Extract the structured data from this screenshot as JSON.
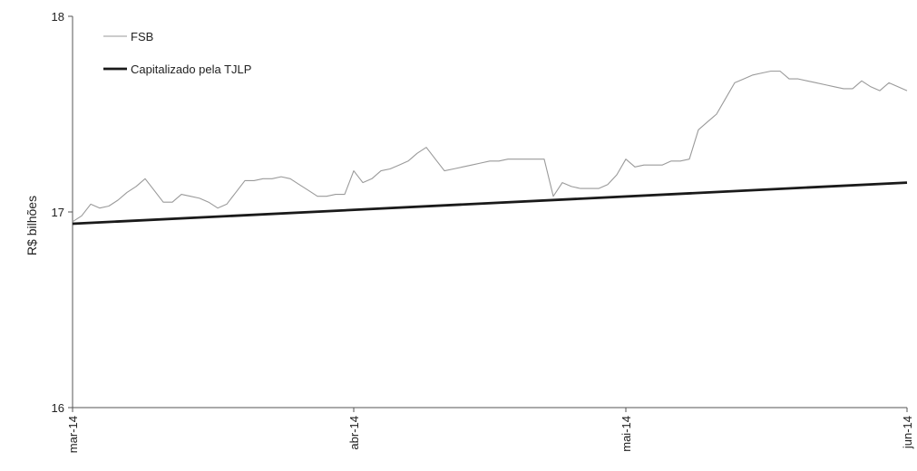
{
  "chart_data": {
    "type": "line",
    "title": "",
    "xlabel": "",
    "ylabel": "R$ bilhões",
    "ylim": [
      16,
      18
    ],
    "xlim": [
      "2014-03-01",
      "2014-06-01"
    ],
    "y_ticks": [
      "16",
      "17",
      "18"
    ],
    "x_ticks": [
      {
        "label": "mar-14",
        "date": "2014-03-01"
      },
      {
        "label": "abr-14",
        "date": "2014-04-01"
      },
      {
        "label": "mai-14",
        "date": "2014-05-01"
      },
      {
        "label": "jun-14",
        "date": "2014-06-01"
      }
    ],
    "grid": false,
    "legend": {
      "position": "top-left"
    },
    "series": [
      {
        "name": "FSB",
        "color": "#9a9a9a",
        "style": "thin",
        "points": [
          [
            "2014-03-01",
            16.95
          ],
          [
            "2014-03-02",
            16.98
          ],
          [
            "2014-03-03",
            17.04
          ],
          [
            "2014-03-04",
            17.02
          ],
          [
            "2014-03-05",
            17.03
          ],
          [
            "2014-03-06",
            17.06
          ],
          [
            "2014-03-07",
            17.1
          ],
          [
            "2014-03-08",
            17.13
          ],
          [
            "2014-03-09",
            17.17
          ],
          [
            "2014-03-10",
            17.11
          ],
          [
            "2014-03-11",
            17.05
          ],
          [
            "2014-03-12",
            17.05
          ],
          [
            "2014-03-13",
            17.09
          ],
          [
            "2014-03-14",
            17.08
          ],
          [
            "2014-03-15",
            17.07
          ],
          [
            "2014-03-16",
            17.05
          ],
          [
            "2014-03-17",
            17.02
          ],
          [
            "2014-03-18",
            17.04
          ],
          [
            "2014-03-19",
            17.1
          ],
          [
            "2014-03-20",
            17.16
          ],
          [
            "2014-03-21",
            17.16
          ],
          [
            "2014-03-22",
            17.17
          ],
          [
            "2014-03-23",
            17.17
          ],
          [
            "2014-03-24",
            17.18
          ],
          [
            "2014-03-25",
            17.17
          ],
          [
            "2014-03-26",
            17.14
          ],
          [
            "2014-03-27",
            17.11
          ],
          [
            "2014-03-28",
            17.08
          ],
          [
            "2014-03-29",
            17.08
          ],
          [
            "2014-03-30",
            17.09
          ],
          [
            "2014-03-31",
            17.09
          ],
          [
            "2014-04-01",
            17.21
          ],
          [
            "2014-04-02",
            17.15
          ],
          [
            "2014-04-03",
            17.17
          ],
          [
            "2014-04-04",
            17.21
          ],
          [
            "2014-04-05",
            17.22
          ],
          [
            "2014-04-06",
            17.24
          ],
          [
            "2014-04-07",
            17.26
          ],
          [
            "2014-04-08",
            17.3
          ],
          [
            "2014-04-09",
            17.33
          ],
          [
            "2014-04-10",
            17.27
          ],
          [
            "2014-04-11",
            17.21
          ],
          [
            "2014-04-12",
            17.22
          ],
          [
            "2014-04-13",
            17.23
          ],
          [
            "2014-04-14",
            17.24
          ],
          [
            "2014-04-15",
            17.25
          ],
          [
            "2014-04-16",
            17.26
          ],
          [
            "2014-04-17",
            17.26
          ],
          [
            "2014-04-18",
            17.27
          ],
          [
            "2014-04-19",
            17.27
          ],
          [
            "2014-04-20",
            17.27
          ],
          [
            "2014-04-21",
            17.27
          ],
          [
            "2014-04-22",
            17.27
          ],
          [
            "2014-04-23",
            17.08
          ],
          [
            "2014-04-24",
            17.15
          ],
          [
            "2014-04-25",
            17.13
          ],
          [
            "2014-04-26",
            17.12
          ],
          [
            "2014-04-27",
            17.12
          ],
          [
            "2014-04-28",
            17.12
          ],
          [
            "2014-04-29",
            17.14
          ],
          [
            "2014-04-30",
            17.19
          ],
          [
            "2014-05-01",
            17.27
          ],
          [
            "2014-05-02",
            17.23
          ],
          [
            "2014-05-03",
            17.24
          ],
          [
            "2014-05-04",
            17.24
          ],
          [
            "2014-05-05",
            17.24
          ],
          [
            "2014-05-06",
            17.26
          ],
          [
            "2014-05-07",
            17.26
          ],
          [
            "2014-05-08",
            17.27
          ],
          [
            "2014-05-09",
            17.42
          ],
          [
            "2014-05-10",
            17.46
          ],
          [
            "2014-05-11",
            17.5
          ],
          [
            "2014-05-12",
            17.58
          ],
          [
            "2014-05-13",
            17.66
          ],
          [
            "2014-05-14",
            17.68
          ],
          [
            "2014-05-15",
            17.7
          ],
          [
            "2014-05-16",
            17.71
          ],
          [
            "2014-05-17",
            17.72
          ],
          [
            "2014-05-18",
            17.72
          ],
          [
            "2014-05-19",
            17.68
          ],
          [
            "2014-05-20",
            17.68
          ],
          [
            "2014-05-21",
            17.67
          ],
          [
            "2014-05-22",
            17.66
          ],
          [
            "2014-05-23",
            17.65
          ],
          [
            "2014-05-24",
            17.64
          ],
          [
            "2014-05-25",
            17.63
          ],
          [
            "2014-05-26",
            17.63
          ],
          [
            "2014-05-27",
            17.67
          ],
          [
            "2014-05-28",
            17.64
          ],
          [
            "2014-05-29",
            17.62
          ],
          [
            "2014-05-30",
            17.66
          ],
          [
            "2014-05-31",
            17.64
          ],
          [
            "2014-06-01",
            17.62
          ]
        ]
      },
      {
        "name": "Capitalizado pela TJLP",
        "color": "#1a1a1a",
        "style": "thick",
        "points": [
          [
            "2014-03-01",
            16.94
          ],
          [
            "2014-06-01",
            17.15
          ]
        ]
      }
    ]
  }
}
